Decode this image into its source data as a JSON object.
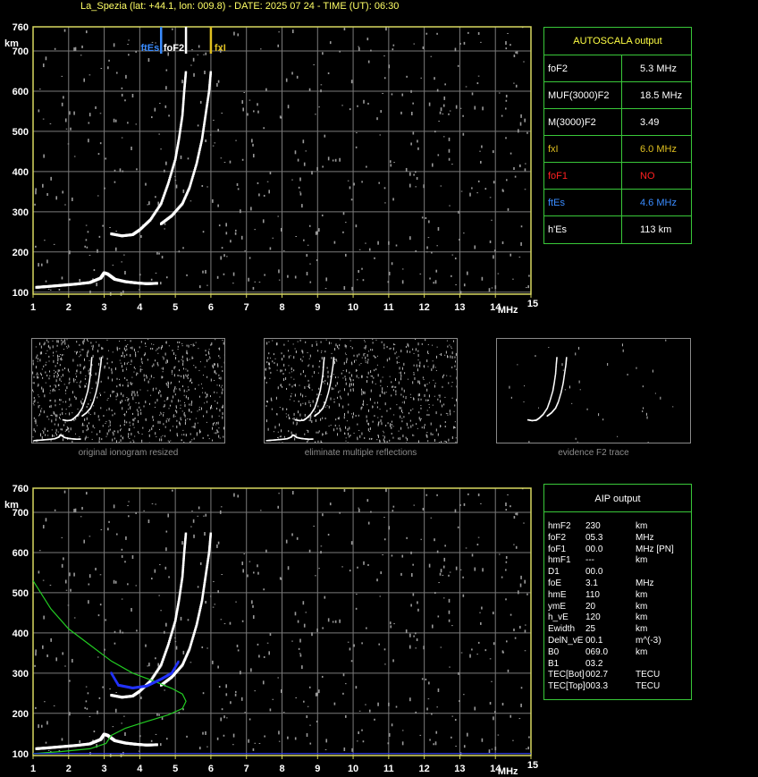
{
  "header": "La_Spezia (lat: +44.1, lon: 009.8) - DATE: 2025 07 24 - TIME (UT): 06:30",
  "colors": {
    "axis": "#d8d860",
    "grid": "#7a7a7a",
    "trace": "#ffffff",
    "profile": "#22cc22",
    "fit": "#2233ff",
    "ftEs": "#3a8cff",
    "foF2": "#ffffff",
    "fxI": "#e0c020",
    "noise": "#9a9a9a"
  },
  "chart_data": [
    {
      "type": "scatter",
      "name": "ionogram-top",
      "xlabel": "MHz",
      "ylabel": "km",
      "xlim": [
        1,
        15
      ],
      "ylim": [
        95,
        760
      ],
      "xticks": [
        "1",
        "2",
        "3",
        "4",
        "5",
        "6",
        "7",
        "8",
        "9",
        "10",
        "11",
        "12",
        "13",
        "14",
        "15"
      ],
      "yticks": [
        "100",
        "200",
        "300",
        "400",
        "500",
        "600",
        "700",
        "760"
      ],
      "markers": [
        {
          "label": "ftEs",
          "x": 4.6
        },
        {
          "label": "foF2",
          "x": 5.3
        },
        {
          "label": "fxI",
          "x": 6.0
        }
      ],
      "traces": {
        "E": [
          [
            1.1,
            112
          ],
          [
            1.4,
            114
          ],
          [
            1.8,
            117
          ],
          [
            2.2,
            120
          ],
          [
            2.6,
            124
          ],
          [
            2.9,
            135
          ],
          [
            3.0,
            148
          ],
          [
            3.1,
            145
          ],
          [
            3.3,
            132
          ],
          [
            3.6,
            126
          ],
          [
            3.9,
            123
          ],
          [
            4.2,
            121
          ],
          [
            4.5,
            122
          ]
        ],
        "O_F2": [
          [
            3.2,
            245
          ],
          [
            3.5,
            240
          ],
          [
            3.8,
            243
          ],
          [
            4.0,
            255
          ],
          [
            4.3,
            280
          ],
          [
            4.6,
            320
          ],
          [
            4.8,
            370
          ],
          [
            5.0,
            430
          ],
          [
            5.1,
            480
          ],
          [
            5.2,
            540
          ],
          [
            5.25,
            600
          ],
          [
            5.3,
            650
          ]
        ],
        "X_F2": [
          [
            4.6,
            270
          ],
          [
            4.9,
            290
          ],
          [
            5.2,
            320
          ],
          [
            5.4,
            360
          ],
          [
            5.6,
            420
          ],
          [
            5.75,
            480
          ],
          [
            5.85,
            540
          ],
          [
            5.95,
            600
          ],
          [
            6.0,
            650
          ]
        ]
      }
    },
    {
      "type": "scatter",
      "name": "ionogram-bottom",
      "xlabel": "MHz",
      "ylabel": "km",
      "xlim": [
        1,
        15
      ],
      "ylim": [
        95,
        760
      ],
      "xticks": [
        "1",
        "2",
        "3",
        "4",
        "5",
        "6",
        "7",
        "8",
        "9",
        "10",
        "11",
        "12",
        "13",
        "14",
        "15"
      ],
      "yticks": [
        "100",
        "200",
        "300",
        "400",
        "500",
        "600",
        "700",
        "760"
      ],
      "profile": [
        [
          1.0,
          530
        ],
        [
          1.5,
          460
        ],
        [
          2.0,
          410
        ],
        [
          2.6,
          370
        ],
        [
          3.2,
          330
        ],
        [
          3.8,
          300
        ],
        [
          4.4,
          280
        ],
        [
          4.9,
          262
        ],
        [
          5.2,
          248
        ],
        [
          5.3,
          230
        ],
        [
          5.2,
          212
        ],
        [
          4.8,
          196
        ],
        [
          4.2,
          180
        ],
        [
          3.6,
          163
        ],
        [
          3.2,
          145
        ],
        [
          3.05,
          125
        ],
        [
          2.6,
          112
        ],
        [
          1.8,
          105
        ],
        [
          1.0,
          100
        ]
      ],
      "fit": [
        [
          3.2,
          300
        ],
        [
          3.4,
          270
        ],
        [
          3.8,
          263
        ],
        [
          4.2,
          268
        ],
        [
          4.6,
          285
        ],
        [
          4.9,
          300
        ],
        [
          5.1,
          330
        ]
      ]
    }
  ],
  "autoscala": {
    "title": "AUTOSCALA output",
    "rows": [
      {
        "key": "foF2",
        "value": "5.3 MHz",
        "color": "#ffffff"
      },
      {
        "key": "MUF(3000)F2",
        "value": "18.5 MHz",
        "color": "#ffffff"
      },
      {
        "key": "M(3000)F2",
        "value": "3.49",
        "color": "#ffffff"
      },
      {
        "key": "fxI",
        "value": "6.0 MHz",
        "color": "#e0c020"
      },
      {
        "key": "foF1",
        "value": "NO",
        "color": "#ff2020"
      },
      {
        "key": "ftEs",
        "value": "4.6 MHz",
        "color": "#3a8cff"
      },
      {
        "key": "h'Es",
        "value": "113     km",
        "color": "#ffffff"
      }
    ]
  },
  "aip": {
    "title": "AIP output",
    "lines": [
      {
        "k": "hmF2",
        "v": "230",
        "u": "km"
      },
      {
        "k": "foF2",
        "v": "05.3",
        "u": "MHz"
      },
      {
        "k": "foF1",
        "v": "00.0",
        "u": "MHz   [PN]"
      },
      {
        "k": "hmF1",
        "v": "---",
        "u": "km"
      },
      {
        "k": "D1",
        "v": "00.0",
        "u": ""
      },
      {
        "k": "foE",
        "v": "3.1",
        "u": "MHz"
      },
      {
        "k": "hmE",
        "v": "110",
        "u": "km"
      },
      {
        "k": "ymE",
        "v": "20",
        "u": "km"
      },
      {
        "k": "h_vE",
        "v": "120",
        "u": "km"
      },
      {
        "k": "Ewidth",
        "v": "25",
        "u": "km"
      },
      {
        "k": "DelN_vE",
        "v": "00.1",
        "u": "m^(-3)"
      },
      {
        "k": "B0",
        "v": "069.0",
        "u": "km"
      },
      {
        "k": "B1",
        "v": "03.2",
        "u": ""
      },
      {
        "k": "TEC[Bot]",
        "v": "002.7",
        "u": "TECU"
      },
      {
        "k": "TEC[Top]",
        "v": "003.3",
        "u": "TECU"
      }
    ]
  },
  "thumbnails": [
    {
      "caption": "original ionogram resized"
    },
    {
      "caption": "eliminate multiple reflections"
    },
    {
      "caption": "evidence F2 trace"
    }
  ]
}
